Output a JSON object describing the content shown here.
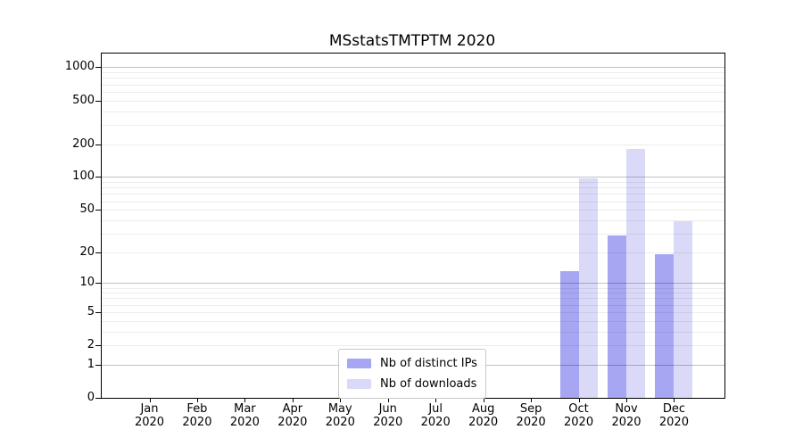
{
  "figure": {
    "title": "MSstatsTMTPTM 2020"
  },
  "chart_data": {
    "type": "bar",
    "title": "MSstatsTMTPTM 2020",
    "categories": [
      "Jan 2020",
      "Feb 2020",
      "Mar 2020",
      "Apr 2020",
      "May 2020",
      "Jun 2020",
      "Jul 2020",
      "Aug 2020",
      "Sep 2020",
      "Oct 2020",
      "Nov 2020",
      "Dec 2020"
    ],
    "series": [
      {
        "name": "Nb of distinct IPs",
        "color": "#a6a6f3",
        "values": [
          0,
          0,
          0,
          0,
          0,
          0,
          0,
          0,
          0,
          13,
          29,
          19
        ]
      },
      {
        "name": "Nb of downloads",
        "color": "#dadaf8",
        "values": [
          0,
          0,
          0,
          0,
          0,
          0,
          0,
          0,
          0,
          98,
          180,
          39
        ]
      }
    ],
    "xlabel": "",
    "ylabel": "",
    "y_axis": {
      "scale": "log10(1+x)",
      "ticks": [
        0,
        1,
        2,
        5,
        10,
        20,
        50,
        100,
        200,
        500,
        1000
      ],
      "major_gridlines": [
        1,
        10,
        100,
        1000
      ],
      "range": [
        0,
        1300
      ]
    },
    "grid": "horizontal, major and minor, drawn over bars",
    "legend_position": "lower center inside plot"
  },
  "colors": {
    "background": "#ffffff",
    "spine": "#000000",
    "major_grid": "rgba(0,0,0,0.24)",
    "minor_grid": "rgba(0,0,0,0.07)",
    "bar_distinct_ips": "#a6a6f3",
    "bar_downloads": "#dadaf8"
  }
}
